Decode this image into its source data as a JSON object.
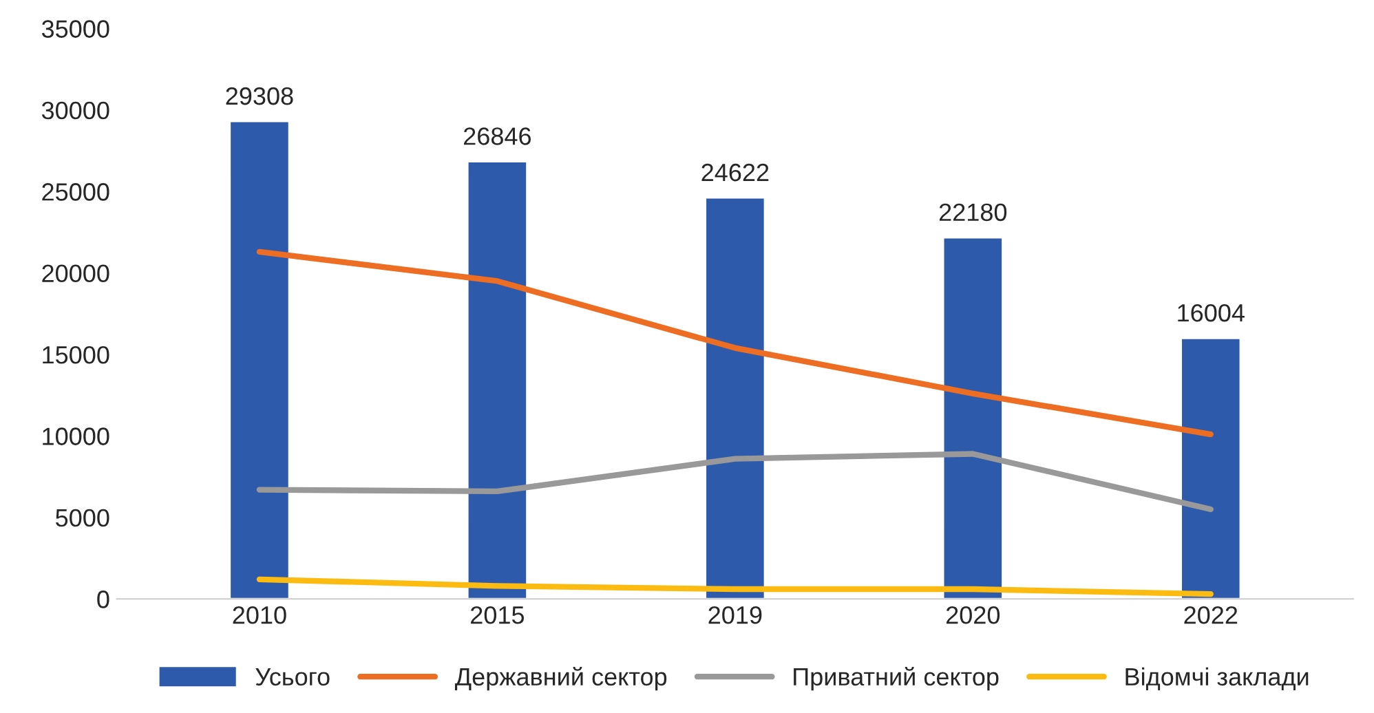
{
  "chart_data": {
    "type": "bar",
    "categories": [
      "2010",
      "2015",
      "2019",
      "2020",
      "2022"
    ],
    "series": [
      {
        "name": "Усього",
        "color": "#2e5aac",
        "values": [
          29308,
          26846,
          24622,
          22180,
          16004
        ],
        "data_labels": true
      },
      {
        "name": "Державний сектор",
        "type": "line",
        "color": "#ed6d23",
        "values": [
          21300,
          19500,
          15400,
          12600,
          10100
        ]
      },
      {
        "name": "Приватний сектор",
        "type": "line",
        "color": "#999999",
        "values": [
          6700,
          6600,
          8600,
          8900,
          5500
        ]
      },
      {
        "name": "Відомчі заклади",
        "type": "line",
        "color": "#fbbb10",
        "values": [
          1200,
          800,
          600,
          600,
          300
        ]
      }
    ],
    "ylim": [
      0,
      35000
    ],
    "yticks": [
      0,
      5000,
      10000,
      15000,
      20000,
      25000,
      30000,
      35000
    ],
    "grid": false,
    "legend": "bottom",
    "marker": "none",
    "line_style": "solid"
  }
}
